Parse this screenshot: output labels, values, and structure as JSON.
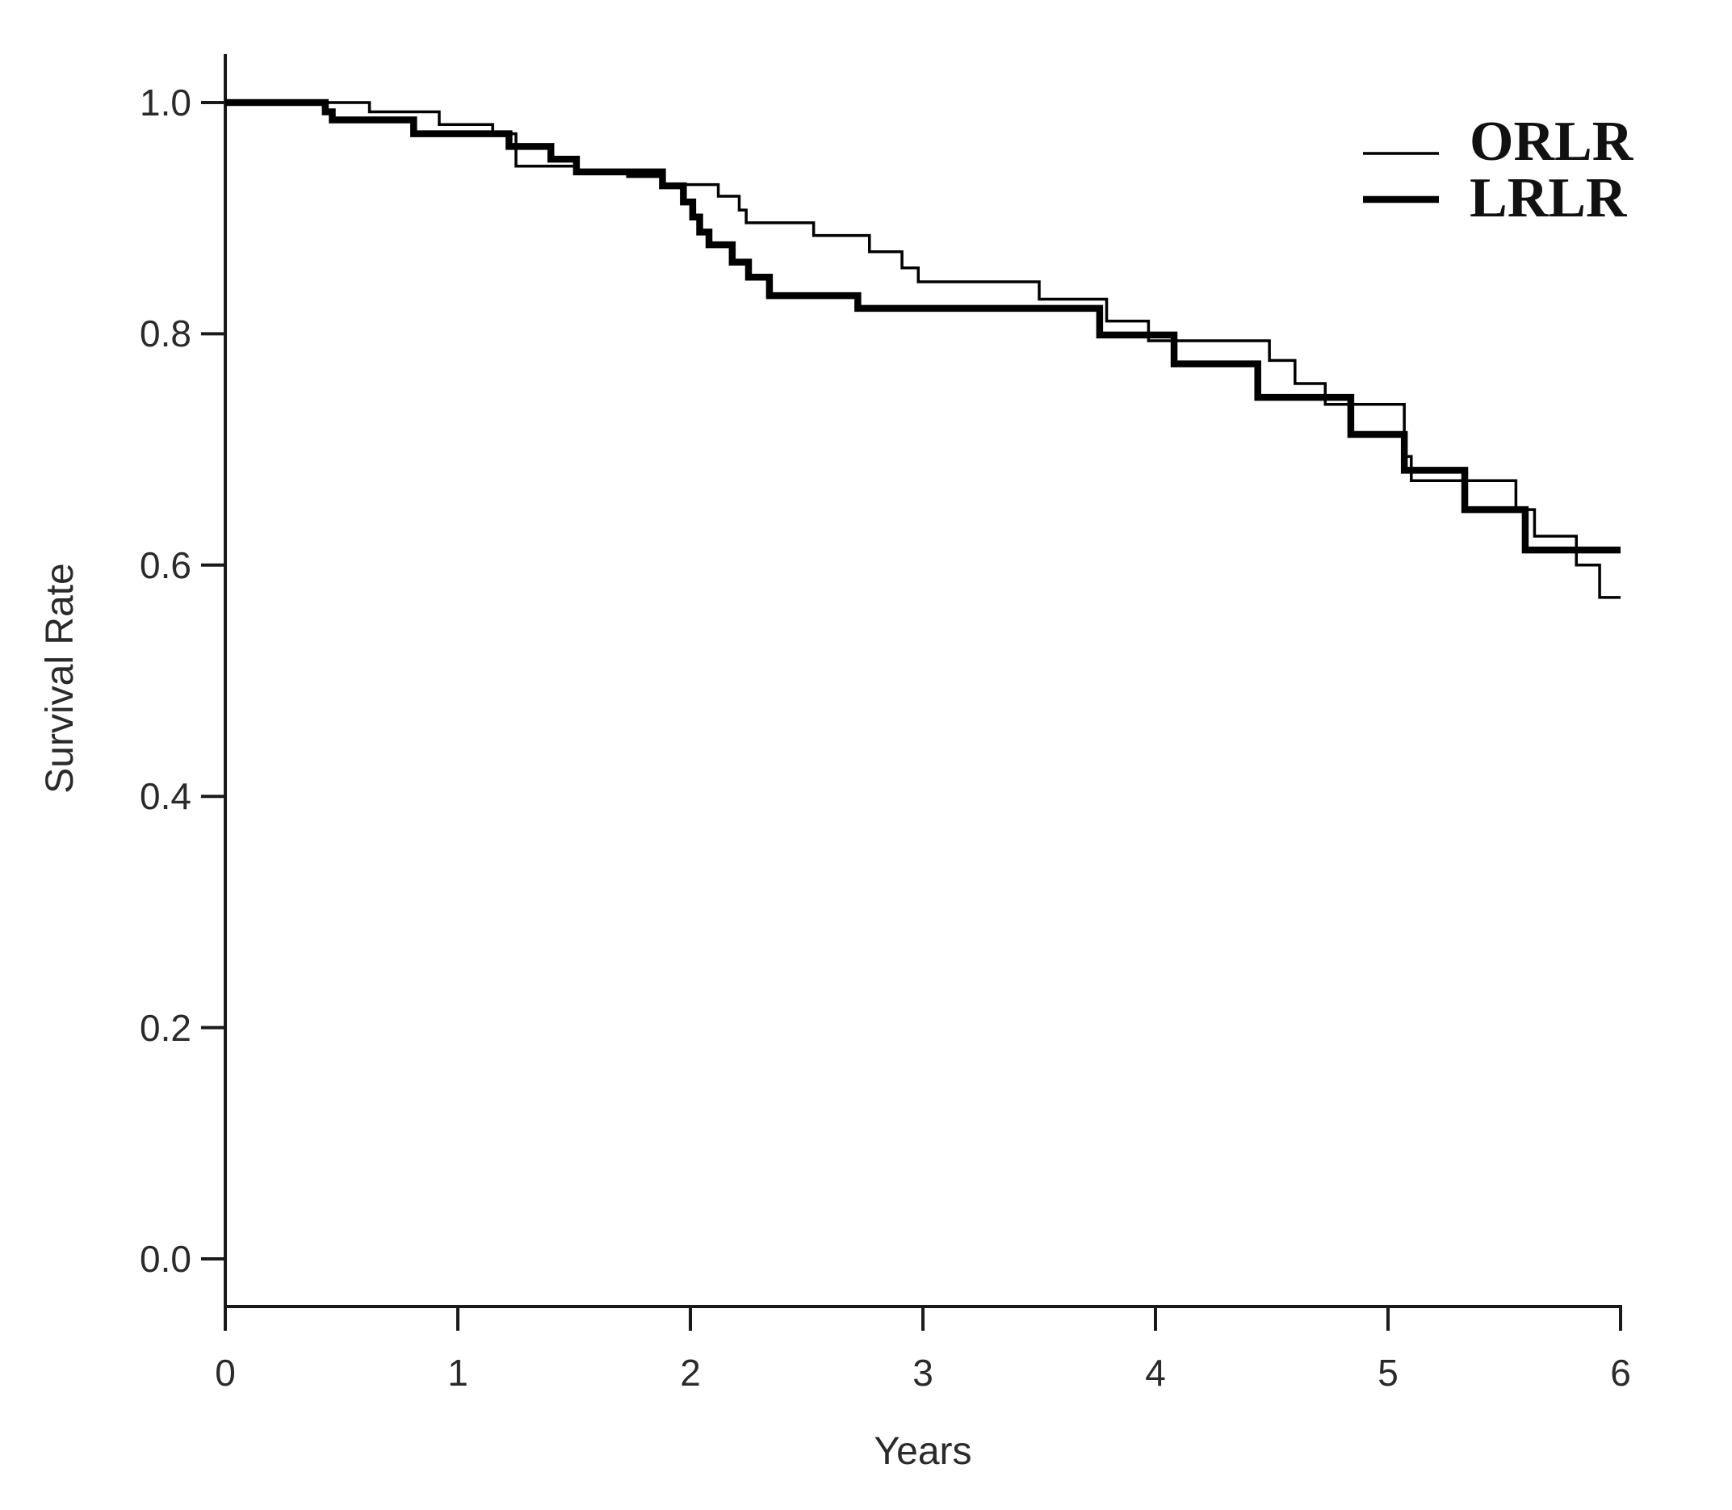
{
  "figure": {
    "background_color": "#ffffff",
    "line_color": "#000000",
    "axis_color": "#1a1a1a"
  },
  "chart_data": {
    "type": "line",
    "subtype": "kaplan-meier-step-survival",
    "title": "",
    "xlabel": "Years",
    "ylabel": "Survival Rate",
    "xlim": [
      0,
      6
    ],
    "ylim": [
      0.0,
      1.0
    ],
    "grid": false,
    "legend_position": "top-right",
    "x_ticks": [
      0,
      1,
      2,
      3,
      4,
      5,
      6
    ],
    "x_tick_labels": [
      "0",
      "1",
      "2",
      "3",
      "4",
      "5",
      "6"
    ],
    "y_ticks": [
      0.0,
      0.2,
      0.4,
      0.6,
      0.8,
      1.0
    ],
    "y_tick_labels": [
      "0.0",
      "0.2",
      "0.4",
      "0.6",
      "0.8",
      "1.0"
    ],
    "series": [
      {
        "name": "ORLR",
        "line_weight": "thin",
        "stroke_width": 3.5,
        "end_time": 6.0,
        "points": [
          [
            0.0,
            1.0
          ],
          [
            0.62,
            0.992
          ],
          [
            0.92,
            0.981
          ],
          [
            1.15,
            0.973
          ],
          [
            1.25,
            0.945
          ],
          [
            1.51,
            0.94
          ],
          [
            1.73,
            0.936
          ],
          [
            1.88,
            0.929
          ],
          [
            2.12,
            0.919
          ],
          [
            2.21,
            0.907
          ],
          [
            2.24,
            0.896
          ],
          [
            2.53,
            0.885
          ],
          [
            2.77,
            0.871
          ],
          [
            2.91,
            0.857
          ],
          [
            2.98,
            0.845
          ],
          [
            3.5,
            0.83
          ],
          [
            3.79,
            0.811
          ],
          [
            3.97,
            0.794
          ],
          [
            4.49,
            0.777
          ],
          [
            4.6,
            0.757
          ],
          [
            4.73,
            0.739
          ],
          [
            5.07,
            0.694
          ],
          [
            5.1,
            0.673
          ],
          [
            5.55,
            0.648
          ],
          [
            5.63,
            0.625
          ],
          [
            5.81,
            0.6
          ],
          [
            5.91,
            0.572
          ]
        ]
      },
      {
        "name": "LRLR",
        "line_weight": "thick",
        "stroke_width": 8.5,
        "end_time": 6.0,
        "points": [
          [
            0.0,
            1.0
          ],
          [
            0.43,
            0.992
          ],
          [
            0.46,
            0.985
          ],
          [
            0.81,
            0.973
          ],
          [
            1.22,
            0.962
          ],
          [
            1.4,
            0.951
          ],
          [
            1.51,
            0.94
          ],
          [
            1.88,
            0.928
          ],
          [
            1.97,
            0.914
          ],
          [
            2.01,
            0.901
          ],
          [
            2.04,
            0.888
          ],
          [
            2.08,
            0.877
          ],
          [
            2.18,
            0.862
          ],
          [
            2.25,
            0.849
          ],
          [
            2.34,
            0.833
          ],
          [
            2.72,
            0.822
          ],
          [
            3.76,
            0.799
          ],
          [
            4.08,
            0.774
          ],
          [
            4.44,
            0.745
          ],
          [
            4.84,
            0.713
          ],
          [
            5.07,
            0.682
          ],
          [
            5.33,
            0.648
          ],
          [
            5.59,
            0.613
          ]
        ]
      }
    ]
  }
}
